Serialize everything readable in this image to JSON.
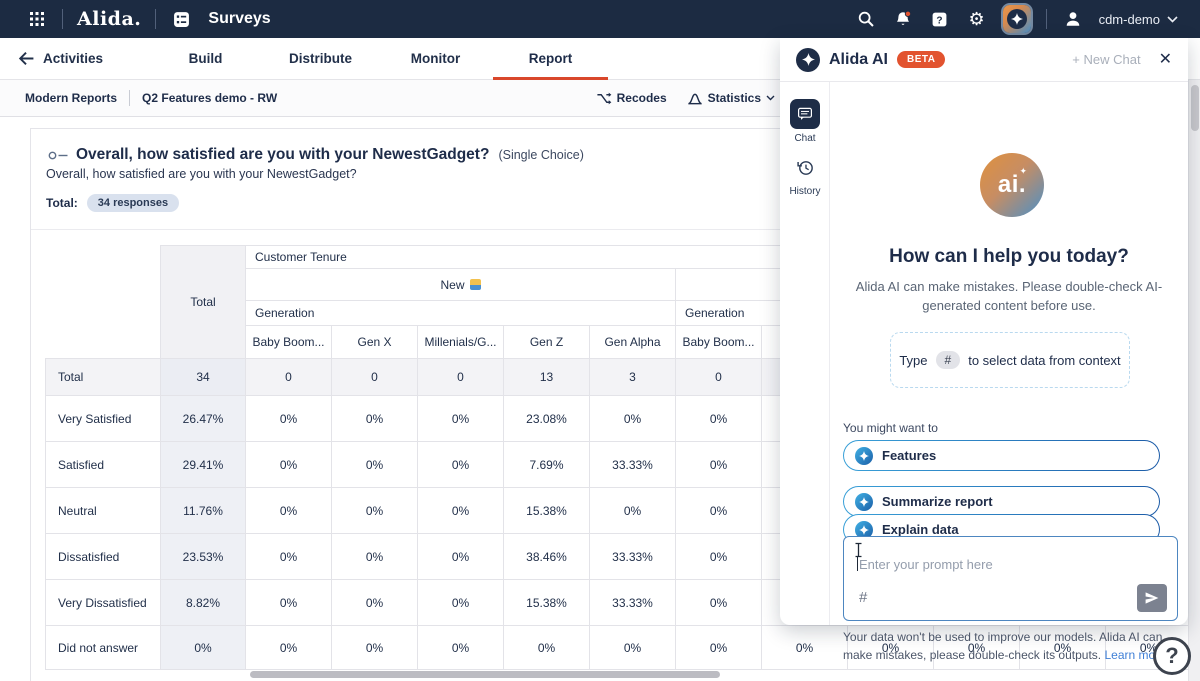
{
  "topnav": {
    "logo": "Alida.",
    "app": "Surveys",
    "account": "cdm-demo"
  },
  "tabs": {
    "items": [
      "Activities",
      "Build",
      "Distribute",
      "Monitor",
      "Report"
    ],
    "active": "Report"
  },
  "breadcrumb": {
    "section": "Modern Reports",
    "report": "Q2 Features demo - RW",
    "recodes": "Recodes",
    "statistics": "Statistics"
  },
  "question": {
    "title": "Overall, how satisfied are you with your NewestGadget?",
    "type": "(Single Choice)",
    "subtitle": "Overall, how satisfied are you with your NewestGadget?",
    "total_label": "Total:",
    "total_badge": "34 responses"
  },
  "table": {
    "group_header": "Customer Tenure",
    "total_col": "Total",
    "generation_label": "Generation",
    "tenure_groups": [
      {
        "label": "New",
        "icon": "person-emoji",
        "span": 5
      },
      {
        "label": "",
        "icon": "",
        "span": 6
      }
    ],
    "columns": [
      "Baby Boom...",
      "Gen X",
      "Millenials/G...",
      "Gen Z",
      "Gen Alpha",
      "Baby Boom...",
      "",
      "",
      "",
      "",
      ""
    ],
    "rows": [
      {
        "label": "Total",
        "values": [
          "34",
          "0",
          "0",
          "0",
          "13",
          "3",
          "0",
          "",
          "",
          "",
          "",
          ""
        ]
      },
      {
        "label": "Very Satisfied",
        "values": [
          "26.47%",
          "0%",
          "0%",
          "0%",
          "23.08%",
          "0%",
          "0%",
          "",
          "",
          "",
          "",
          ""
        ]
      },
      {
        "label": "Satisfied",
        "values": [
          "29.41%",
          "0%",
          "0%",
          "0%",
          "7.69%",
          "33.33%",
          "0%",
          "",
          "",
          "",
          "",
          ""
        ]
      },
      {
        "label": "Neutral",
        "values": [
          "11.76%",
          "0%",
          "0%",
          "0%",
          "15.38%",
          "0%",
          "0%",
          "",
          "",
          "",
          "",
          ""
        ]
      },
      {
        "label": "Dissatisfied",
        "values": [
          "23.53%",
          "0%",
          "0%",
          "0%",
          "38.46%",
          "33.33%",
          "0%",
          "",
          "",
          "",
          "",
          ""
        ]
      },
      {
        "label": "Very Dissatisfied",
        "values": [
          "8.82%",
          "0%",
          "0%",
          "0%",
          "15.38%",
          "33.33%",
          "0%",
          "",
          "",
          "",
          "",
          ""
        ]
      },
      {
        "label": "Did not answer",
        "values": [
          "0%",
          "0%",
          "0%",
          "0%",
          "0%",
          "0%",
          "0%",
          "0%",
          "0%",
          "0%",
          "0%",
          "0%"
        ]
      }
    ]
  },
  "ai": {
    "title": "Alida AI",
    "beta": "BETA",
    "new_chat": "+ New Chat",
    "close": "✕",
    "tabs": {
      "chat": "Chat",
      "history": "History"
    },
    "logo_text": "ai.",
    "logo_spark": "✦",
    "greeting": "How can I help you today?",
    "disclaimer": "Alida AI can make mistakes. Please double-check AI-generated content before use.",
    "context": {
      "prefix": "Type",
      "key": "#",
      "suffix": "to select data from context"
    },
    "suggestions_label": "You might want to",
    "suggestions": [
      "Features",
      "Summarize report",
      "Explain data"
    ],
    "input": {
      "placeholder": "Enter your prompt here",
      "hash": "#"
    },
    "footer": {
      "text": "Your data won't be used to improve our models. Alida AI can make mistakes, please double-check its outputs. ",
      "link": "Learn more."
    }
  },
  "help": {
    "label": "?"
  },
  "colors": {
    "navbar": "#1c2b42",
    "accent_red": "#d9472b",
    "beta_badge": "#e2532f",
    "ai_blue": "#4a90c8",
    "ai_orange": "#e0913d"
  }
}
